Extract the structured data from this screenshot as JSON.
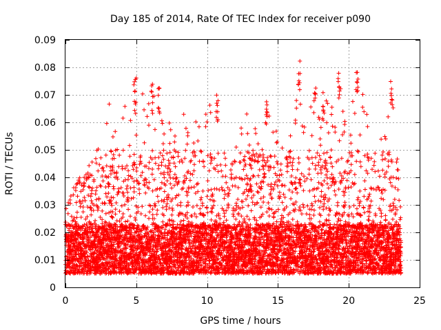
{
  "chart_data": {
    "type": "scatter",
    "title": "Day 185 of 2014, Rate Of TEC Index for receiver p090",
    "xlabel": "GPS time / hours",
    "ylabel": "ROTI / TECUs",
    "xlim": [
      0,
      25
    ],
    "ylim": [
      0,
      0.09
    ],
    "x_ticks": [
      0,
      5,
      10,
      15,
      20,
      25
    ],
    "y_ticks": [
      0,
      0.01,
      0.02,
      0.03,
      0.04,
      0.05,
      0.06,
      0.07,
      0.08,
      0.09
    ],
    "x_tick_labels": [
      "0",
      "5",
      "10",
      "15",
      "20",
      "25"
    ],
    "y_tick_labels": [
      "0",
      "0.01",
      "0.02",
      "0.03",
      "0.04",
      "0.05",
      "0.06",
      "0.07",
      "0.08",
      "0.09"
    ],
    "grid": true,
    "marker": "plus",
    "color": "#ff0000",
    "series": [
      {
        "name": "ROTI",
        "x_range": [
          0,
          23.7
        ],
        "baseline_range": [
          0.005,
          0.02
        ],
        "typical_spike_max": 0.05,
        "notable_peaks": [
          {
            "x": 4.9,
            "y": 0.078
          },
          {
            "x": 6.1,
            "y": 0.075
          },
          {
            "x": 6.6,
            "y": 0.075
          },
          {
            "x": 10.7,
            "y": 0.072
          },
          {
            "x": 14.2,
            "y": 0.069
          },
          {
            "x": 16.5,
            "y": 0.083
          },
          {
            "x": 17.6,
            "y": 0.075
          },
          {
            "x": 18.2,
            "y": 0.072
          },
          {
            "x": 19.3,
            "y": 0.078
          },
          {
            "x": 20.6,
            "y": 0.081
          },
          {
            "x": 23.0,
            "y": 0.075
          }
        ],
        "envelope": [
          {
            "x": 0.0,
            "y": 0.03
          },
          {
            "x": 1.0,
            "y": 0.042
          },
          {
            "x": 2.0,
            "y": 0.047
          },
          {
            "x": 3.0,
            "y": 0.067
          },
          {
            "x": 4.0,
            "y": 0.063
          },
          {
            "x": 4.9,
            "y": 0.078
          },
          {
            "x": 6.1,
            "y": 0.075
          },
          {
            "x": 6.6,
            "y": 0.075
          },
          {
            "x": 7.5,
            "y": 0.062
          },
          {
            "x": 8.3,
            "y": 0.066
          },
          {
            "x": 9.0,
            "y": 0.066
          },
          {
            "x": 9.8,
            "y": 0.062
          },
          {
            "x": 10.7,
            "y": 0.072
          },
          {
            "x": 11.5,
            "y": 0.04
          },
          {
            "x": 12.3,
            "y": 0.058
          },
          {
            "x": 12.7,
            "y": 0.064
          },
          {
            "x": 13.6,
            "y": 0.062
          },
          {
            "x": 14.2,
            "y": 0.069
          },
          {
            "x": 15.2,
            "y": 0.058
          },
          {
            "x": 15.9,
            "y": 0.062
          },
          {
            "x": 16.5,
            "y": 0.083
          },
          {
            "x": 17.0,
            "y": 0.066
          },
          {
            "x": 17.6,
            "y": 0.075
          },
          {
            "x": 18.2,
            "y": 0.072
          },
          {
            "x": 19.3,
            "y": 0.078
          },
          {
            "x": 20.0,
            "y": 0.066
          },
          {
            "x": 20.6,
            "y": 0.081
          },
          {
            "x": 21.3,
            "y": 0.062
          },
          {
            "x": 22.0,
            "y": 0.05
          },
          {
            "x": 23.0,
            "y": 0.075
          },
          {
            "x": 23.7,
            "y": 0.03
          }
        ]
      }
    ]
  }
}
